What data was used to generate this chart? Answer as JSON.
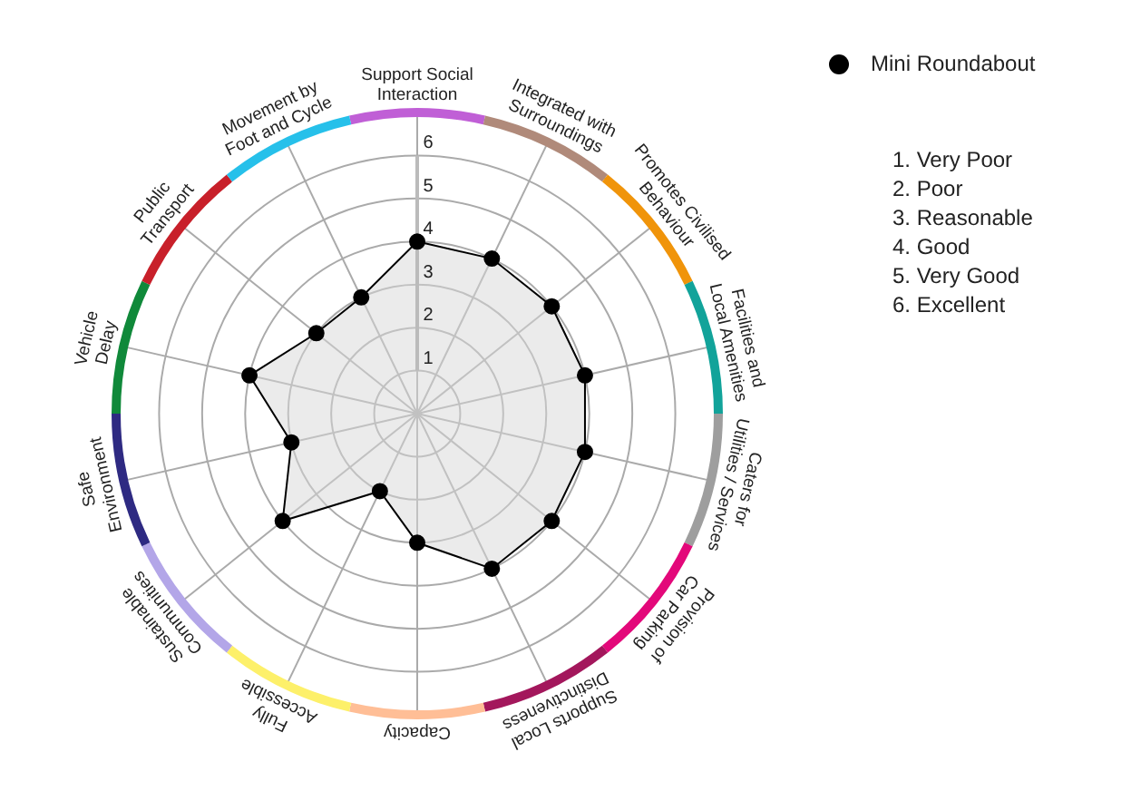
{
  "chart_data": {
    "type": "radar",
    "categories": [
      "Support Social Interaction",
      "Integrated with Surroundings",
      "Promotes Civilised Behaviour",
      "Facilities and Local Amenities",
      "Caters for Utilities / Services",
      "Provision of Car Parking",
      "Supports Local Distinctiveness",
      "Capacity",
      "Fully Accessible",
      "Sustainable Communities",
      "Safe Environment",
      "Vehicle Delay",
      "Public Transport",
      "Movement by Foot and Cycle"
    ],
    "colors": [
      "#c05fd6",
      "#b08a7a",
      "#f0940a",
      "#12a39a",
      "#9e9e9e",
      "#e3087a",
      "#a3175c",
      "#ffbe96",
      "#fdf06a",
      "#b3a6e8",
      "#2e2a82",
      "#10893a",
      "#c8202a",
      "#26c0ea"
    ],
    "series": [
      {
        "name": "Mini Roundabout",
        "color": "#000000",
        "values": [
          4,
          4,
          4,
          4,
          4,
          4,
          4,
          3,
          2,
          4,
          3,
          4,
          3,
          3
        ]
      }
    ],
    "ylim": [
      0,
      7
    ],
    "yticks": [
      1,
      2,
      3,
      4,
      5,
      6
    ],
    "grid": true,
    "legend": "top right",
    "marker": "circle",
    "annotations": [
      "1. Very Poor",
      "2. Poor",
      "3. Reasonable",
      "4. Good",
      "5. Very Good",
      "6. Excellent"
    ]
  }
}
